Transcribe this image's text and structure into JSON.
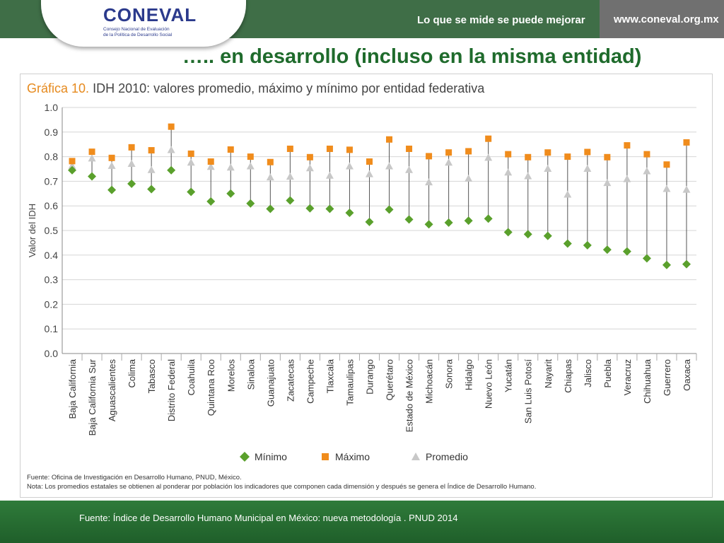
{
  "header": {
    "logo_text": "CONEVAL",
    "logo_sub_line1": "Consejo Nacional de Evaluación",
    "logo_sub_line2": "de la Política de Desarrollo Social",
    "slogan": "Lo que se mide se puede mejorar",
    "url": "www.coneval.org.mx"
  },
  "headline": "….. en desarrollo (incluso en la misma entidad)",
  "chart_title": {
    "prefix": "Gráfica 10.",
    "rest": "IDH 2010: valores promedio, máximo y mínimo por entidad federativa"
  },
  "notes": {
    "line1": "Fuente: Oficina de Investigación en Desarrollo Humano, PNUD, México.",
    "line2": "Nota: Los promedios estatales se obtienen al ponderar por población los indicadores que componen cada dimensión y después se genera el Índice de Desarrollo Humano."
  },
  "footer": {
    "source": "Fuente: Índice de Desarrollo Humano Municipal en México: nueva metodología . PNUD 2014"
  },
  "colors": {
    "minimo": "#5aa02c",
    "maximo": "#f08c1c",
    "promedio": "#c8c8c8"
  },
  "chart_data": {
    "type": "scatter",
    "ylabel": "Valor del IDH",
    "ylim": [
      0,
      1
    ],
    "y_ticks": [
      "0.0",
      "0.1",
      "0.2",
      "0.3",
      "0.4",
      "0.5",
      "0.6",
      "0.7",
      "0.8",
      "0.9",
      "1.0"
    ],
    "grid": true,
    "legend_position": "bottom-center",
    "categories": [
      "Baja California",
      "Baja California Sur",
      "Aguascalientes",
      "Colima",
      "Tabasco",
      "Distrito Federal",
      "Coahuila",
      "Quintana Roo",
      "Morelos",
      "Sinaloa",
      "Guanajuato",
      "Zacatecas",
      "Campeche",
      "Tlaxcala",
      "Tamaulipas",
      "Durango",
      "Querétaro",
      "Estado de México",
      "Michoacán",
      "Sonora",
      "Hidalgo",
      "Nuevo León",
      "Yucatán",
      "San Luis Potosí",
      "Nayarit",
      "Chiapas",
      "Jalisco",
      "Puebla",
      "Veracruz",
      "Chihuahua",
      "Guerrero",
      "Oaxaca"
    ],
    "series": [
      {
        "name": "Mínimo",
        "marker": "diamond",
        "values": [
          0.745,
          0.72,
          0.665,
          0.69,
          0.668,
          0.745,
          0.657,
          0.618,
          0.65,
          0.61,
          0.588,
          0.622,
          0.59,
          0.588,
          0.572,
          0.535,
          0.585,
          0.545,
          0.525,
          0.532,
          0.54,
          0.548,
          0.493,
          0.485,
          0.478,
          0.447,
          0.44,
          0.422,
          0.415,
          0.387,
          0.36,
          0.363
        ]
      },
      {
        "name": "Máximo",
        "marker": "square",
        "values": [
          0.782,
          0.82,
          0.795,
          0.838,
          0.826,
          0.922,
          0.812,
          0.78,
          0.829,
          0.8,
          0.778,
          0.832,
          0.798,
          0.832,
          0.828,
          0.78,
          0.87,
          0.832,
          0.802,
          0.817,
          0.822,
          0.873,
          0.81,
          0.798,
          0.817,
          0.8,
          0.819,
          0.798,
          0.846,
          0.81,
          0.768,
          0.858
        ]
      },
      {
        "name": "Promedio",
        "marker": "triangle",
        "values": [
          0.762,
          0.792,
          0.762,
          0.77,
          0.745,
          0.826,
          0.775,
          0.758,
          0.755,
          0.76,
          0.715,
          0.718,
          0.752,
          0.722,
          0.76,
          0.728,
          0.76,
          0.745,
          0.695,
          0.775,
          0.71,
          0.795,
          0.735,
          0.72,
          0.75,
          0.645,
          0.75,
          0.692,
          0.708,
          0.74,
          0.668,
          0.665
        ]
      }
    ]
  }
}
